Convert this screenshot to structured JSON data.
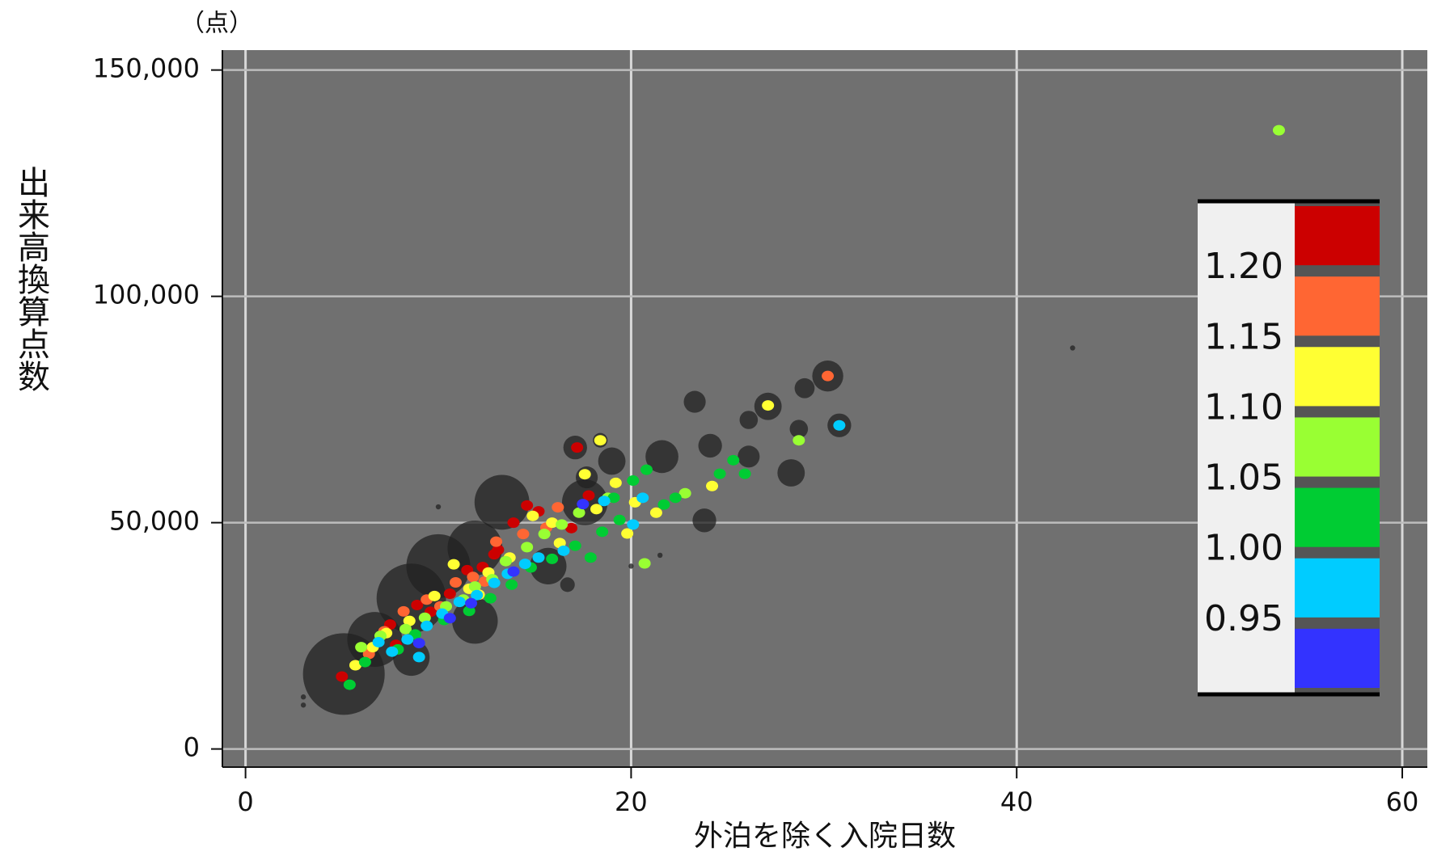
{
  "chart_data": {
    "type": "scatter",
    "y_unit": "（点）",
    "xlabel": "外泊を除く入院日数",
    "ylabel": "出来高換算点数",
    "xlim": [
      -1.2,
      61.3
    ],
    "ylim": [
      -4000,
      154400
    ],
    "xticks": [
      0,
      20,
      40,
      60
    ],
    "yticks": [
      0,
      {
        "value": 50000,
        "label": "50,000"
      },
      {
        "value": 100000,
        "label": "100,000"
      },
      {
        "value": 150000,
        "label": "150,000"
      }
    ],
    "grid": true,
    "background": "#707070",
    "bubbles": {
      "color": "#222222",
      "x": [
        5.1,
        8.6,
        13.3,
        11.9,
        10.0,
        6.7,
        21.6,
        17.6,
        23.3,
        27.1,
        30.2,
        28.3,
        24.1,
        23.8,
        17.1,
        19.0,
        15.7,
        11.9,
        8.6,
        26.1,
        29.0,
        28.7,
        26.1,
        42.9,
        10.0,
        3.0,
        3.0,
        16.7,
        20.0,
        21.5,
        30.8,
        18.4,
        17.7
      ],
      "values": [
        16560,
        33300,
        54500,
        44400,
        40400,
        24200,
        64600,
        54500,
        76700,
        75700,
        82400,
        61000,
        67000,
        50500,
        66600,
        63600,
        40400,
        28300,
        20200,
        64600,
        79700,
        70700,
        72700,
        88600,
        53500,
        9700,
        11500,
        36300,
        40400,
        42800,
        71500,
        68200,
        60000
      ],
      "sizes": [
        500,
        361,
        225,
        225,
        306,
        225,
        81,
        156,
        36,
        56,
        72,
        56,
        42,
        42,
        42,
        56,
        100,
        156,
        100,
        36,
        30,
        25,
        25,
        2,
        2,
        2,
        2,
        16,
        2,
        2,
        42,
        16,
        36
      ]
    },
    "series": [
      {
        "color": "#cc0000",
        "x": [
          5.0,
          7.5,
          8.9,
          10.6,
          11.5,
          12.3,
          13.1,
          13.9,
          14.6,
          15.2,
          16.9,
          17.2,
          17.8,
          9.6,
          12.9,
          7.8
        ],
        "values": [
          16000,
          27500,
          31800,
          34300,
          39500,
          40200,
          44000,
          50000,
          53800,
          52500,
          48800,
          66600,
          56000,
          30300,
          43000,
          23000
        ]
      },
      {
        "color": "#ff6633",
        "x": [
          30.2,
          6.4,
          8.2,
          9.4,
          10.9,
          11.8,
          13.0,
          14.4,
          15.6,
          16.2,
          10.1,
          12.4,
          7.2
        ],
        "values": [
          82400,
          21000,
          30400,
          33000,
          36800,
          38000,
          45800,
          47500,
          48900,
          53400,
          31500,
          37000,
          26000
        ]
      },
      {
        "color": "#ffff33",
        "x": [
          27.1,
          18.4,
          24.2,
          5.7,
          6.6,
          7.3,
          8.5,
          9.8,
          10.8,
          11.6,
          12.6,
          13.7,
          14.9,
          15.9,
          16.3,
          17.6,
          18.2,
          19.2,
          20.2,
          21.3,
          19.8,
          12.1
        ],
        "values": [
          75900,
          68200,
          58100,
          18500,
          22500,
          25600,
          28300,
          33800,
          40800,
          35400,
          39000,
          42300,
          51500,
          50000,
          45500,
          60700,
          53000,
          58800,
          54500,
          52200,
          47600,
          34100
        ]
      },
      {
        "color": "#99ff33",
        "x": [
          53.6,
          28.7,
          20.7,
          22.8,
          6.0,
          7.0,
          8.3,
          9.3,
          10.4,
          11.3,
          12.8,
          13.5,
          14.6,
          15.5,
          16.4,
          17.3,
          18.8,
          11.9
        ],
        "values": [
          136700,
          68200,
          41000,
          56500,
          22500,
          25000,
          26500,
          29000,
          31500,
          33000,
          37500,
          41500,
          44600,
          47500,
          49600,
          52200,
          55500,
          35900
        ]
      },
      {
        "color": "#00cc33",
        "x": [
          25.3,
          25.9,
          24.6,
          5.4,
          6.2,
          7.9,
          8.8,
          10.3,
          11.6,
          12.7,
          13.8,
          14.8,
          15.9,
          17.1,
          18.5,
          19.1,
          20.1,
          20.8,
          21.7,
          22.3,
          19.4,
          17.9
        ],
        "values": [
          63800,
          60800,
          60800,
          14200,
          19200,
          22000,
          25300,
          28500,
          30500,
          33300,
          36300,
          40100,
          42000,
          44900,
          48000,
          55500,
          59300,
          61700,
          54000,
          55500,
          50600,
          42300
        ]
      },
      {
        "color": "#00ccff",
        "x": [
          30.8,
          6.9,
          7.6,
          8.4,
          9.4,
          10.2,
          11.1,
          12.0,
          12.9,
          13.6,
          14.5,
          15.2,
          16.5,
          18.6,
          20.6,
          20.1,
          9.0
        ],
        "values": [
          71500,
          23600,
          21500,
          24200,
          27200,
          29900,
          32500,
          34000,
          36700,
          38700,
          40900,
          42300,
          43800,
          54800,
          55500,
          49600,
          20300
        ]
      },
      {
        "color": "#3333ff",
        "x": [
          17.5,
          9.0,
          11.7,
          13.9,
          10.6
        ],
        "values": [
          54100,
          23400,
          32200,
          39200,
          28900
        ]
      }
    ],
    "colorbar": {
      "colors": [
        "#cc0000",
        "#ff6633",
        "#ffff33",
        "#99ff33",
        "#00cc33",
        "#00ccff",
        "#3333ff"
      ],
      "ticks": [
        {
          "value": 1.2,
          "label": "1.20"
        },
        1.15,
        {
          "value": 1.1,
          "label": "1.10"
        },
        1.05,
        {
          "value": 1.0,
          "label": "1.00"
        },
        0.95
      ]
    }
  }
}
